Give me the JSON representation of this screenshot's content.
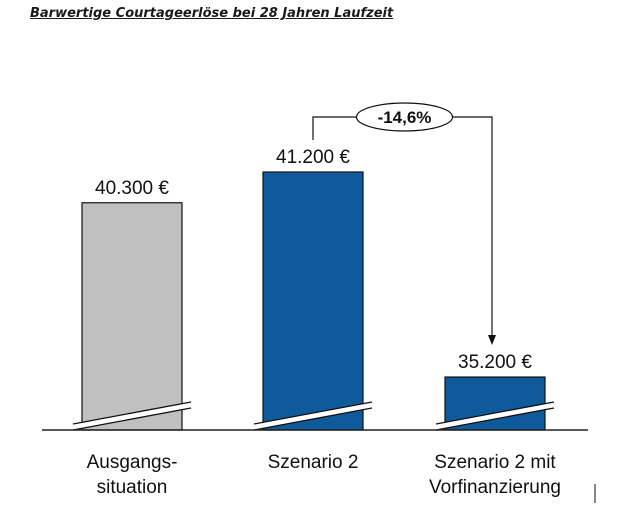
{
  "chart_data": {
    "type": "bar",
    "title": "Barwertige Courtageerlöse bei 28 Jahren Laufzeit",
    "categories": [
      "Ausgangs-\nsituation",
      "Szenario 2",
      "Szenario 2 mit\nVorfinanzierung"
    ],
    "values": [
      40300,
      41200,
      35200
    ],
    "value_labels": [
      "40.300 €",
      "41.200 €",
      "35.200 €"
    ],
    "colors": [
      "#c0c0c0",
      "#0e5a9b",
      "#0e5a9b"
    ],
    "axis_break": true,
    "annotation": {
      "text": "-14,6%",
      "from_category": 1,
      "to_category": 2
    }
  }
}
